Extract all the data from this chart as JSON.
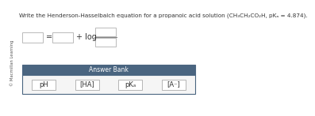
{
  "title": "Write the Henderson-Hasselbalch equation for a propanoic acid solution (CH₃CH₂CO₂H, pKₐ = 4.874).",
  "sidebar_text": "© Macmillan Learning",
  "answer_bank_label": "Answer Bank",
  "answer_bank_items": [
    "pH",
    "[HA]",
    "pKₐ",
    "[A⁻]"
  ],
  "box_color": "#ffffff",
  "box_edge_color": "#b0b0b0",
  "answer_bank_header_color": "#4a6580",
  "answer_bank_bg_color": "#f5f5f5",
  "answer_bank_border_color": "#4a6580",
  "item_box_color": "#ffffff",
  "item_box_edge_color": "#aaaaaa",
  "title_fontsize": 5.2,
  "sidebar_fontsize": 3.8,
  "eq_fontsize": 7.0,
  "answer_bank_header_fontsize": 5.5,
  "answer_bank_item_fontsize": 6.0,
  "bg_color": "#ffffff",
  "text_color": "#333333",
  "sidebar_color": "#555555"
}
